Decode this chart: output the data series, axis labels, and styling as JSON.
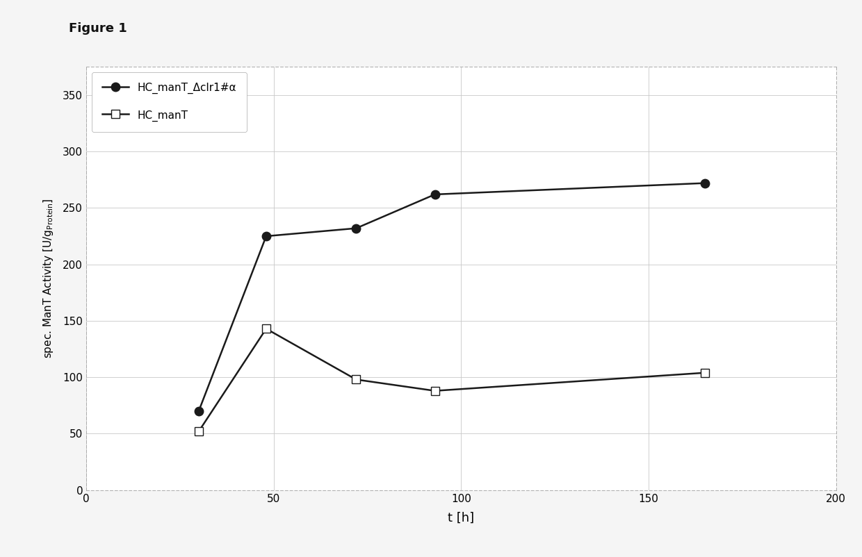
{
  "series1_label": "HC_manT_Δclr1#α",
  "series1_x": [
    30,
    48,
    72,
    93,
    165
  ],
  "series1_y": [
    70,
    225,
    232,
    262,
    272
  ],
  "series1_color": "#1a1a1a",
  "series1_marker": "o",
  "series1_markerfacecolor": "#1a1a1a",
  "series2_label": "HC_manT",
  "series2_x": [
    30,
    48,
    72,
    93,
    165
  ],
  "series2_y": [
    52,
    143,
    98,
    88,
    104
  ],
  "series2_color": "#1a1a1a",
  "series2_marker": "s",
  "series2_markerfacecolor": "#ffffff",
  "xlabel": "t [h]",
  "ylabel": "spec. ManT Activity [U/g",
  "ylabel_subscript": "Protein",
  "ylabel_suffix": "]",
  "xlim": [
    0,
    200
  ],
  "ylim": [
    0,
    375
  ],
  "xticks": [
    0,
    50,
    100,
    150,
    200
  ],
  "yticks": [
    0,
    50,
    100,
    150,
    200,
    250,
    300,
    350
  ],
  "figure_title": "Figure 1",
  "background_color": "#f5f5f5",
  "plot_bg_color": "#ffffff",
  "line_width": 1.8,
  "marker_size": 9,
  "grid_color": "#c8c8c8",
  "legend_loc": "upper left",
  "border_color": "#aaaaaa"
}
